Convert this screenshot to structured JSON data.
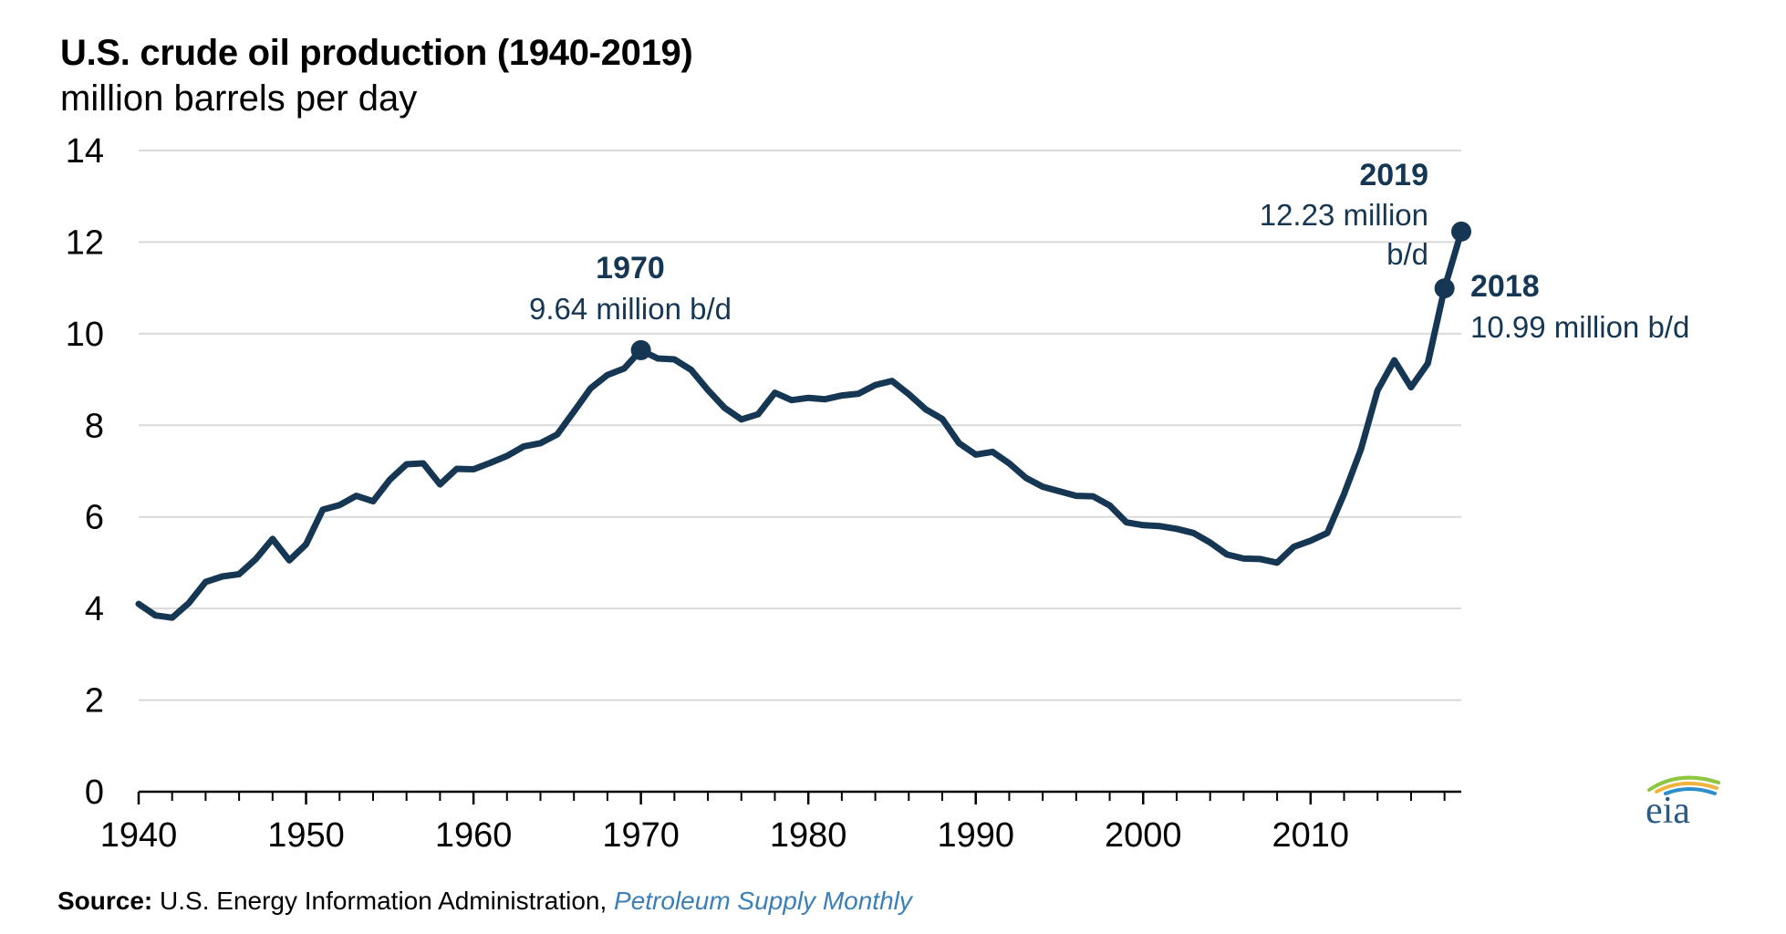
{
  "header": {
    "title": "U.S. crude oil production (1940-2019)",
    "subtitle": "million barrels per day"
  },
  "source": {
    "label": "Source:",
    "text": " U.S. Energy Information Administration, ",
    "publication": "Petroleum Supply Monthly"
  },
  "logo": {
    "text": "eia"
  },
  "colors": {
    "line": "#163754",
    "grid": "#d9d9d9",
    "annotation": "#163754",
    "source_link": "#3b7fb6"
  },
  "annotations": {
    "peak1970_year": "1970",
    "peak1970_value": "9.64 million b/d",
    "y2019_year": "2019",
    "y2019_value_line1": "12.23 million",
    "y2019_value_line2": "b/d",
    "y2018_year": "2018",
    "y2018_value": "10.99 million b/d"
  },
  "chart_data": {
    "type": "line",
    "title": "U.S. crude oil production (1940-2019)",
    "ylabel": "million barrels per day",
    "xlim": [
      1940,
      2019
    ],
    "ylim": [
      0,
      14
    ],
    "yticks": [
      0,
      2,
      4,
      6,
      8,
      10,
      12,
      14
    ],
    "xticks": [
      1940,
      1950,
      1960,
      1970,
      1980,
      1990,
      2000,
      2010
    ],
    "grid": true,
    "x": [
      1940,
      1941,
      1942,
      1943,
      1944,
      1945,
      1946,
      1947,
      1948,
      1949,
      1950,
      1951,
      1952,
      1953,
      1954,
      1955,
      1956,
      1957,
      1958,
      1959,
      1960,
      1961,
      1962,
      1963,
      1964,
      1965,
      1966,
      1967,
      1968,
      1969,
      1970,
      1971,
      1972,
      1973,
      1974,
      1975,
      1976,
      1977,
      1978,
      1979,
      1980,
      1981,
      1982,
      1983,
      1984,
      1985,
      1986,
      1987,
      1988,
      1989,
      1990,
      1991,
      1992,
      1993,
      1994,
      1995,
      1996,
      1997,
      1998,
      1999,
      2000,
      2001,
      2002,
      2003,
      2004,
      2005,
      2006,
      2007,
      2008,
      2009,
      2010,
      2011,
      2012,
      2013,
      2014,
      2015,
      2016,
      2017,
      2018,
      2019
    ],
    "y": [
      4.1,
      3.85,
      3.8,
      4.12,
      4.58,
      4.7,
      4.75,
      5.08,
      5.52,
      5.05,
      5.4,
      6.16,
      6.26,
      6.46,
      6.34,
      6.81,
      7.15,
      7.17,
      6.71,
      7.05,
      7.04,
      7.18,
      7.33,
      7.54,
      7.61,
      7.8,
      8.3,
      8.81,
      9.1,
      9.24,
      9.64,
      9.46,
      9.44,
      9.21,
      8.77,
      8.38,
      8.13,
      8.24,
      8.71,
      8.55,
      8.6,
      8.57,
      8.65,
      8.69,
      8.88,
      8.97,
      8.68,
      8.35,
      8.14,
      7.61,
      7.36,
      7.42,
      7.17,
      6.85,
      6.66,
      6.56,
      6.46,
      6.45,
      6.25,
      5.88,
      5.82,
      5.8,
      5.74,
      5.65,
      5.44,
      5.18,
      5.09,
      5.08,
      5.0,
      5.35,
      5.48,
      5.65,
      6.5,
      7.47,
      8.76,
      9.42,
      8.83,
      9.35,
      10.99,
      12.23
    ],
    "highlights": [
      {
        "x": 1970,
        "y": 9.64
      },
      {
        "x": 2018,
        "y": 10.99
      },
      {
        "x": 2019,
        "y": 12.23
      }
    ]
  }
}
